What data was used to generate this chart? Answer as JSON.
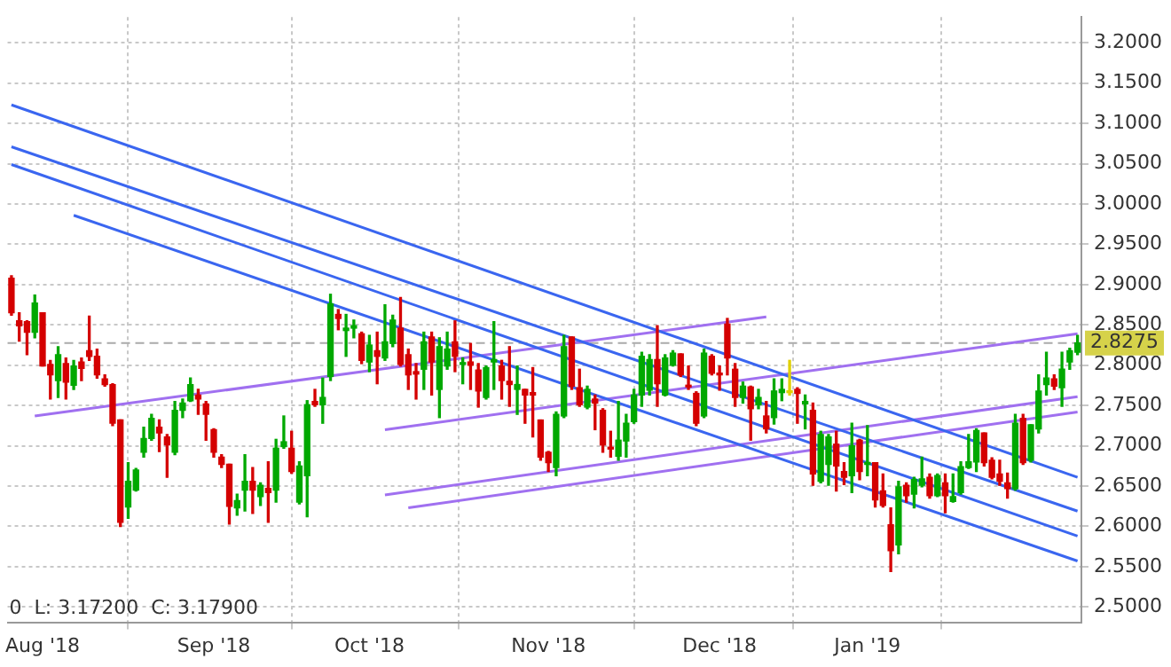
{
  "chart_data": {
    "type": "candlestick",
    "categories": [
      null,
      null,
      null,
      null,
      "Aug '18",
      null,
      null,
      null,
      null,
      null,
      null,
      null,
      null,
      null,
      null,
      null,
      null,
      null,
      null,
      null,
      null,
      null,
      null,
      null,
      null,
      null,
      "Sep '18",
      null,
      null,
      null,
      null,
      null,
      null,
      null,
      null,
      null,
      null,
      null,
      null,
      null,
      null,
      null,
      null,
      null,
      null,
      null,
      "Oct '18",
      null,
      null,
      null,
      null,
      null,
      null,
      null,
      null,
      null,
      null,
      null,
      null,
      null,
      null,
      null,
      null,
      null,
      null,
      null,
      null,
      null,
      null,
      "Nov '18",
      null,
      null,
      null,
      null,
      null,
      null,
      null,
      null,
      null,
      null,
      null,
      null,
      null,
      null,
      null,
      null,
      null,
      null,
      null,
      null,
      null,
      "Dec '18",
      null,
      null,
      null,
      null,
      null,
      null,
      null,
      null,
      null,
      null,
      null,
      null,
      null,
      null,
      null,
      null,
      null,
      null,
      "Jan '19",
      null,
      null,
      null,
      null,
      null,
      null,
      null,
      null,
      null,
      null,
      null,
      null,
      null,
      null,
      null,
      null,
      null,
      null,
      null,
      null,
      null,
      null,
      null,
      null,
      null,
      null,
      null
    ],
    "ohlc": [
      [
        2.908,
        2.911,
        2.862,
        2.865
      ],
      [
        2.855,
        2.865,
        2.83,
        2.849
      ],
      [
        2.854,
        2.855,
        2.813,
        2.841
      ],
      [
        2.841,
        2.887,
        2.834,
        2.877
      ],
      [
        2.865,
        2.865,
        2.799,
        2.799
      ],
      [
        2.801,
        2.806,
        2.758,
        2.788
      ],
      [
        2.781,
        2.823,
        2.76,
        2.813
      ],
      [
        2.802,
        2.809,
        2.758,
        2.779
      ],
      [
        2.775,
        2.806,
        2.77,
        2.799
      ],
      [
        2.804,
        2.809,
        2.781,
        2.796
      ],
      [
        2.818,
        2.861,
        2.806,
        2.811
      ],
      [
        2.811,
        2.82,
        2.784,
        2.788
      ],
      [
        2.783,
        2.788,
        2.774,
        2.776
      ],
      [
        2.776,
        2.777,
        2.725,
        2.728
      ],
      [
        2.732,
        2.732,
        2.6,
        2.605
      ],
      [
        2.624,
        2.679,
        2.61,
        2.656
      ],
      [
        2.645,
        2.672,
        2.644,
        2.67
      ],
      [
        2.692,
        2.723,
        2.686,
        2.709
      ],
      [
        2.709,
        2.739,
        2.707,
        2.734
      ],
      [
        2.723,
        2.732,
        2.693,
        2.716
      ],
      [
        2.711,
        2.714,
        2.661,
        2.701
      ],
      [
        2.692,
        2.755,
        2.689,
        2.744
      ],
      [
        2.744,
        2.758,
        2.735,
        2.753
      ],
      [
        2.756,
        2.784,
        2.755,
        2.776
      ],
      [
        2.763,
        2.77,
        2.739,
        2.758
      ],
      [
        2.752,
        2.755,
        2.707,
        2.739
      ],
      [
        2.72,
        2.721,
        2.686,
        2.692
      ],
      [
        2.686,
        2.689,
        2.673,
        2.677
      ],
      [
        2.677,
        2.677,
        2.603,
        2.625
      ],
      [
        2.623,
        2.64,
        2.614,
        2.632
      ],
      [
        2.645,
        2.689,
        2.619,
        2.656
      ],
      [
        2.656,
        2.673,
        2.616,
        2.645
      ],
      [
        2.637,
        2.654,
        2.626,
        2.651
      ],
      [
        2.647,
        2.68,
        2.605,
        2.642
      ],
      [
        2.645,
        2.708,
        2.63,
        2.697
      ],
      [
        2.699,
        2.737,
        2.697,
        2.705
      ],
      [
        2.697,
        2.718,
        2.666,
        2.668
      ],
      [
        2.63,
        2.68,
        2.628,
        2.675
      ],
      [
        2.663,
        2.756,
        2.612,
        2.751
      ],
      [
        2.755,
        2.77,
        2.749,
        2.751
      ],
      [
        2.751,
        2.784,
        2.728,
        2.76
      ],
      [
        2.786,
        2.888,
        2.781,
        2.876
      ],
      [
        2.863,
        2.869,
        2.844,
        2.858
      ],
      [
        2.843,
        2.863,
        2.811,
        2.846
      ],
      [
        2.846,
        2.856,
        2.834,
        2.849
      ],
      [
        2.839,
        2.841,
        2.802,
        2.806
      ],
      [
        2.804,
        2.837,
        2.792,
        2.825
      ],
      [
        2.818,
        2.841,
        2.777,
        2.811
      ],
      [
        2.809,
        2.875,
        2.806,
        2.829
      ],
      [
        2.827,
        2.862,
        2.823,
        2.856
      ],
      [
        2.846,
        2.884,
        2.799,
        2.801
      ],
      [
        2.813,
        2.82,
        2.77,
        2.788
      ],
      [
        2.792,
        2.802,
        2.758,
        2.789
      ],
      [
        2.795,
        2.841,
        2.77,
        2.829
      ],
      [
        2.835,
        2.841,
        2.763,
        2.804
      ],
      [
        2.77,
        2.834,
        2.735,
        2.823
      ],
      [
        2.799,
        2.841,
        2.795,
        2.82
      ],
      [
        2.829,
        2.855,
        2.792,
        2.811
      ],
      [
        2.801,
        2.809,
        2.777,
        2.802
      ],
      [
        2.804,
        2.827,
        2.77,
        2.8
      ],
      [
        2.794,
        2.802,
        2.748,
        2.768
      ],
      [
        2.76,
        2.799,
        2.758,
        2.797
      ],
      [
        2.804,
        2.854,
        2.77,
        2.807
      ],
      [
        2.799,
        2.806,
        2.758,
        2.781
      ],
      [
        2.78,
        2.823,
        2.749,
        2.776
      ],
      [
        2.77,
        2.799,
        2.739,
        2.776
      ],
      [
        2.77,
        2.77,
        2.728,
        2.763
      ],
      [
        2.766,
        2.797,
        2.711,
        2.763
      ],
      [
        2.732,
        2.732,
        2.682,
        2.686
      ],
      [
        2.692,
        2.693,
        2.668,
        2.679
      ],
      [
        2.673,
        2.742,
        2.663,
        2.739
      ],
      [
        2.737,
        2.837,
        2.735,
        2.823
      ],
      [
        2.835,
        2.835,
        2.77,
        2.774
      ],
      [
        2.772,
        2.795,
        2.749,
        2.751
      ],
      [
        2.748,
        2.774,
        2.746,
        2.77
      ],
      [
        2.758,
        2.763,
        2.72,
        2.753
      ],
      [
        2.744,
        2.746,
        2.692,
        2.701
      ],
      [
        2.698,
        2.718,
        2.686,
        2.696
      ],
      [
        2.687,
        2.755,
        2.682,
        2.707
      ],
      [
        2.706,
        2.739,
        2.686,
        2.728
      ],
      [
        2.73,
        2.77,
        2.728,
        2.763
      ],
      [
        2.763,
        2.816,
        2.749,
        2.811
      ],
      [
        2.769,
        2.813,
        2.763,
        2.807
      ],
      [
        2.807,
        2.849,
        2.749,
        2.777
      ],
      [
        2.763,
        2.813,
        2.762,
        2.809
      ],
      [
        2.8,
        2.818,
        2.799,
        2.815
      ],
      [
        2.814,
        2.814,
        2.786,
        2.788
      ],
      [
        2.775,
        2.799,
        2.77,
        2.773
      ],
      [
        2.765,
        2.767,
        2.725,
        2.728
      ],
      [
        2.737,
        2.82,
        2.735,
        2.815
      ],
      [
        2.811,
        2.813,
        2.788,
        2.79
      ],
      [
        2.789,
        2.799,
        2.769,
        2.788
      ],
      [
        2.851,
        2.858,
        2.788,
        2.809
      ],
      [
        2.795,
        2.802,
        2.749,
        2.76
      ],
      [
        2.76,
        2.779,
        2.753,
        2.774
      ],
      [
        2.773,
        2.774,
        2.707,
        2.746
      ],
      [
        2.751,
        2.77,
        2.746,
        2.76
      ],
      [
        2.737,
        2.755,
        2.716,
        2.721
      ],
      [
        2.735,
        2.783,
        2.727,
        2.768
      ],
      [
        2.766,
        2.783,
        2.756,
        2.77
      ],
      [
        2.766,
        2.806,
        2.763,
        2.767
      ],
      [
        2.77,
        2.772,
        2.728,
        2.765
      ],
      [
        2.752,
        2.763,
        2.721,
        2.755
      ],
      [
        2.744,
        2.753,
        2.651,
        2.665
      ],
      [
        2.656,
        2.718,
        2.654,
        2.714
      ],
      [
        2.677,
        2.714,
        2.651,
        2.711
      ],
      [
        2.702,
        2.718,
        2.644,
        2.675
      ],
      [
        2.668,
        2.679,
        2.652,
        2.661
      ],
      [
        2.663,
        2.728,
        2.642,
        2.7
      ],
      [
        2.707,
        2.708,
        2.658,
        2.668
      ],
      [
        2.677,
        2.725,
        2.663,
        2.679
      ],
      [
        2.679,
        2.679,
        2.624,
        2.633
      ],
      [
        2.644,
        2.665,
        2.624,
        2.626
      ],
      [
        2.602,
        2.623,
        2.544,
        2.57
      ],
      [
        2.577,
        2.656,
        2.566,
        2.649
      ],
      [
        2.651,
        2.654,
        2.63,
        2.638
      ],
      [
        2.64,
        2.661,
        2.623,
        2.658
      ],
      [
        2.651,
        2.686,
        2.649,
        2.659
      ],
      [
        2.661,
        2.665,
        2.635,
        2.638
      ],
      [
        2.638,
        2.665,
        2.637,
        2.663
      ],
      [
        2.654,
        2.665,
        2.617,
        2.638
      ],
      [
        2.631,
        2.665,
        2.63,
        2.637
      ],
      [
        2.642,
        2.68,
        2.64,
        2.674
      ],
      [
        2.673,
        2.714,
        2.672,
        2.68
      ],
      [
        2.68,
        2.721,
        2.668,
        2.719
      ],
      [
        2.716,
        2.716,
        2.675,
        2.679
      ],
      [
        2.682,
        2.685,
        2.659,
        2.661
      ],
      [
        2.665,
        2.682,
        2.651,
        2.656
      ],
      [
        2.654,
        2.666,
        2.635,
        2.647
      ],
      [
        2.647,
        2.739,
        2.645,
        2.728
      ],
      [
        2.734,
        2.739,
        2.677,
        2.679
      ],
      [
        2.682,
        2.726,
        2.68,
        2.726
      ],
      [
        2.721,
        2.788,
        2.716,
        2.768
      ],
      [
        2.776,
        2.816,
        2.763,
        2.784
      ],
      [
        2.783,
        2.788,
        2.77,
        2.774
      ],
      [
        2.772,
        2.816,
        2.749,
        2.795
      ],
      [
        2.804,
        2.821,
        2.795,
        2.818
      ],
      [
        2.816,
        2.837,
        2.813,
        2.8275
      ]
    ],
    "colors": [
      "#d40000",
      "#d40000",
      "#d40000",
      "#00a800",
      "#d40000",
      "#d40000",
      "#00a800",
      "#d40000",
      "#00a800",
      "#d40000",
      "#d40000",
      "#d40000",
      "#d40000",
      "#d40000",
      "#d40000",
      "#00a800",
      "#00a800",
      "#00a800",
      "#00a800",
      "#d40000",
      "#d40000",
      "#00a800",
      "#00a800",
      "#00a800",
      "#d40000",
      "#d40000",
      "#d40000",
      "#d40000",
      "#d40000",
      "#00a800",
      "#00a800",
      "#d40000",
      "#00a800",
      "#d40000",
      "#00a800",
      "#00a800",
      "#d40000",
      "#00a800",
      "#00a800",
      "#d40000",
      "#00a800",
      "#00a800",
      "#d40000",
      "#00a800",
      "#00a800",
      "#d40000",
      "#00a800",
      "#d40000",
      "#00a800",
      "#00a800",
      "#d40000",
      "#d40000",
      "#d40000",
      "#00a800",
      "#d40000",
      "#00a800",
      "#00a800",
      "#d40000",
      "#00a800",
      "#d40000",
      "#d40000",
      "#00a800",
      "#00a800",
      "#d40000",
      "#d40000",
      "#00a800",
      "#d40000",
      "#d40000",
      "#d40000",
      "#d40000",
      "#00a800",
      "#00a800",
      "#d40000",
      "#d40000",
      "#00a800",
      "#d40000",
      "#d40000",
      "#d40000",
      "#00a800",
      "#00a800",
      "#00a800",
      "#00a800",
      "#00a800",
      "#d40000",
      "#00a800",
      "#00a800",
      "#d40000",
      "#d40000",
      "#d40000",
      "#00a800",
      "#d40000",
      "#d40000",
      "#d40000",
      "#d40000",
      "#00a800",
      "#d40000",
      "#00a800",
      "#d40000",
      "#00a800",
      "#00a800",
      "#e0d000",
      "#d40000",
      "#00a800",
      "#d40000",
      "#00a800",
      "#00a800",
      "#d40000",
      "#d40000",
      "#00a800",
      "#d40000",
      "#00a800",
      "#d40000",
      "#d40000",
      "#d40000",
      "#00a800",
      "#d40000",
      "#00a800",
      "#00a800",
      "#d40000",
      "#00a800",
      "#d40000",
      "#00a800",
      "#00a800",
      "#00a800",
      "#00a800",
      "#d40000",
      "#d40000",
      "#d40000",
      "#d40000",
      "#00a800",
      "#d40000",
      "#00a800",
      "#00a800",
      "#00a800",
      "#d40000",
      "#00a800",
      "#00a800",
      "#00a800"
    ],
    "series": [
      {
        "type": "line",
        "color": "#3a66f0",
        "values": [
          3.123,
          null,
          null,
          null,
          null,
          null,
          null,
          null,
          null,
          null,
          null,
          null,
          null,
          null,
          null,
          null,
          null,
          null,
          null,
          null,
          null,
          null,
          null,
          null,
          null,
          null,
          null,
          null,
          null,
          null,
          null,
          null,
          null,
          null,
          null,
          null,
          null,
          null,
          null,
          null,
          null,
          null,
          null,
          null,
          null,
          null,
          null,
          null,
          null,
          null,
          null,
          null,
          null,
          null,
          null,
          null,
          null,
          null,
          null,
          null,
          null,
          null,
          null,
          null,
          null,
          null,
          null,
          null,
          null,
          null,
          null,
          null,
          null,
          null,
          null,
          null,
          null,
          null,
          null,
          null,
          null,
          null,
          null,
          null,
          null,
          null,
          null,
          null,
          null,
          null,
          null,
          null,
          null,
          null,
          null,
          null,
          null,
          null,
          null,
          null,
          null,
          null,
          null,
          null,
          null,
          null,
          null,
          null,
          null,
          null,
          null,
          null,
          null,
          null,
          null,
          null,
          null,
          null,
          null,
          null,
          null,
          null,
          null,
          null,
          null,
          null,
          null,
          null,
          null,
          null,
          null,
          null,
          null,
          null,
          null,
          null,
          null,
          2.661
        ]
      },
      {
        "type": "line",
        "color": "#3a66f0",
        "values": [
          3.071,
          null,
          null,
          null,
          null,
          null,
          null,
          null,
          null,
          null,
          null,
          null,
          null,
          null,
          null,
          null,
          null,
          null,
          null,
          null,
          null,
          null,
          null,
          null,
          null,
          null,
          null,
          null,
          null,
          null,
          null,
          null,
          null,
          null,
          null,
          null,
          null,
          null,
          null,
          null,
          null,
          null,
          null,
          null,
          null,
          null,
          null,
          null,
          null,
          null,
          null,
          null,
          null,
          null,
          null,
          null,
          null,
          null,
          null,
          null,
          null,
          null,
          null,
          null,
          null,
          null,
          null,
          null,
          null,
          null,
          null,
          null,
          null,
          null,
          null,
          null,
          null,
          null,
          null,
          null,
          null,
          null,
          null,
          null,
          null,
          null,
          null,
          null,
          null,
          null,
          null,
          null,
          null,
          null,
          null,
          null,
          null,
          null,
          null,
          null,
          null,
          null,
          null,
          null,
          null,
          null,
          null,
          null,
          null,
          null,
          null,
          null,
          null,
          null,
          null,
          null,
          null,
          null,
          null,
          null,
          null,
          null,
          null,
          null,
          null,
          null,
          null,
          null,
          null,
          null,
          null,
          null,
          null,
          null,
          null,
          null,
          null,
          2.619
        ]
      },
      {
        "type": "line",
        "color": "#3a66f0",
        "values": [
          3.049,
          null,
          null,
          null,
          null,
          null,
          null,
          null,
          null,
          null,
          null,
          null,
          null,
          null,
          null,
          null,
          null,
          null,
          null,
          null,
          null,
          null,
          null,
          null,
          null,
          null,
          null,
          null,
          null,
          null,
          null,
          null,
          null,
          null,
          null,
          null,
          null,
          null,
          null,
          null,
          null,
          null,
          null,
          null,
          null,
          null,
          null,
          null,
          null,
          null,
          null,
          null,
          null,
          null,
          null,
          null,
          null,
          null,
          null,
          null,
          null,
          null,
          null,
          null,
          null,
          null,
          null,
          null,
          null,
          null,
          null,
          null,
          null,
          null,
          null,
          null,
          null,
          null,
          null,
          null,
          null,
          null,
          null,
          null,
          null,
          null,
          null,
          null,
          null,
          null,
          null,
          null,
          null,
          null,
          null,
          null,
          null,
          null,
          null,
          null,
          null,
          null,
          null,
          null,
          null,
          null,
          null,
          null,
          null,
          null,
          null,
          null,
          null,
          null,
          null,
          null,
          null,
          null,
          null,
          null,
          null,
          null,
          null,
          null,
          null,
          null,
          null,
          null,
          null,
          null,
          null,
          null,
          null,
          null,
          null,
          null,
          null,
          2.588
        ]
      },
      {
        "type": "line",
        "color": "#3a66f0",
        "values": [
          null,
          null,
          null,
          null,
          null,
          null,
          null,
          null,
          2.986,
          null,
          null,
          null,
          null,
          null,
          null,
          null,
          null,
          null,
          null,
          null,
          null,
          null,
          null,
          null,
          null,
          null,
          null,
          null,
          null,
          null,
          null,
          null,
          null,
          null,
          null,
          null,
          null,
          null,
          null,
          null,
          null,
          null,
          null,
          null,
          null,
          null,
          null,
          null,
          null,
          null,
          null,
          null,
          null,
          null,
          null,
          null,
          null,
          null,
          null,
          null,
          null,
          null,
          null,
          null,
          null,
          null,
          null,
          null,
          null,
          null,
          null,
          null,
          null,
          null,
          null,
          null,
          null,
          null,
          null,
          null,
          null,
          null,
          null,
          null,
          null,
          null,
          null,
          null,
          null,
          null,
          null,
          null,
          null,
          null,
          null,
          null,
          null,
          null,
          null,
          null,
          null,
          null,
          null,
          null,
          null,
          null,
          null,
          null,
          null,
          null,
          null,
          null,
          null,
          null,
          null,
          null,
          null,
          null,
          null,
          null,
          null,
          null,
          null,
          null,
          null,
          null,
          null,
          null,
          null,
          null,
          null,
          null,
          null,
          null,
          null,
          null,
          null,
          2.557
        ]
      },
      {
        "type": "line",
        "color": "#a070f0",
        "values": [
          null,
          null,
          null,
          2.737,
          null,
          null,
          null,
          null,
          null,
          null,
          null,
          null,
          null,
          null,
          null,
          null,
          null,
          null,
          null,
          null,
          null,
          null,
          null,
          null,
          null,
          null,
          null,
          null,
          null,
          null,
          null,
          null,
          null,
          null,
          null,
          null,
          null,
          null,
          null,
          null,
          null,
          null,
          null,
          null,
          null,
          null,
          null,
          null,
          null,
          null,
          null,
          null,
          null,
          null,
          null,
          null,
          null,
          null,
          null,
          null,
          null,
          null,
          null,
          null,
          null,
          null,
          null,
          null,
          null,
          null,
          null,
          null,
          null,
          null,
          null,
          null,
          null,
          null,
          null,
          null,
          null,
          null,
          null,
          null,
          null,
          null,
          null,
          null,
          null,
          null,
          null,
          null,
          null,
          null,
          null,
          null,
          null,
          2.86,
          null,
          null,
          null,
          null,
          null,
          null,
          null,
          null,
          null,
          null,
          null,
          null,
          null,
          null,
          null,
          null,
          null,
          null,
          null,
          null,
          null,
          null,
          null,
          null,
          null,
          null,
          null,
          null,
          null,
          null,
          null,
          null,
          null,
          null,
          null,
          null,
          null,
          null,
          null,
          null
        ]
      },
      {
        "type": "line",
        "color": "#a070f0",
        "values": [
          null,
          null,
          null,
          null,
          null,
          null,
          null,
          null,
          null,
          null,
          null,
          null,
          null,
          null,
          null,
          null,
          null,
          null,
          null,
          null,
          null,
          null,
          null,
          null,
          null,
          null,
          null,
          null,
          null,
          null,
          null,
          null,
          null,
          null,
          null,
          null,
          null,
          null,
          null,
          null,
          null,
          null,
          null,
          null,
          null,
          null,
          null,
          null,
          2.72,
          null,
          null,
          null,
          null,
          null,
          null,
          null,
          null,
          null,
          null,
          null,
          null,
          null,
          null,
          null,
          null,
          null,
          null,
          null,
          null,
          null,
          null,
          null,
          null,
          null,
          null,
          null,
          null,
          null,
          null,
          null,
          null,
          null,
          null,
          null,
          null,
          null,
          null,
          null,
          null,
          null,
          null,
          null,
          null,
          null,
          null,
          null,
          null,
          null,
          null,
          null,
          null,
          null,
          null,
          null,
          null,
          null,
          null,
          null,
          null,
          null,
          null,
          null,
          null,
          null,
          null,
          null,
          null,
          null,
          null,
          null,
          null,
          null,
          null,
          null,
          null,
          null,
          null,
          null,
          null,
          null,
          null,
          null,
          null,
          null,
          null,
          null,
          null,
          2.839
        ]
      },
      {
        "type": "line",
        "color": "#a070f0",
        "values": [
          null,
          null,
          null,
          null,
          null,
          null,
          null,
          null,
          null,
          null,
          null,
          null,
          null,
          null,
          null,
          null,
          null,
          null,
          null,
          null,
          null,
          null,
          null,
          null,
          null,
          null,
          null,
          null,
          null,
          null,
          null,
          null,
          null,
          null,
          null,
          null,
          null,
          null,
          null,
          null,
          null,
          null,
          null,
          null,
          null,
          null,
          null,
          null,
          2.639,
          null,
          null,
          null,
          null,
          null,
          null,
          null,
          null,
          null,
          null,
          null,
          null,
          null,
          null,
          null,
          null,
          null,
          null,
          null,
          null,
          null,
          null,
          null,
          null,
          null,
          null,
          null,
          null,
          null,
          null,
          null,
          null,
          null,
          null,
          null,
          null,
          null,
          null,
          null,
          null,
          null,
          null,
          null,
          null,
          null,
          null,
          null,
          null,
          null,
          null,
          null,
          null,
          null,
          null,
          null,
          null,
          null,
          null,
          null,
          null,
          null,
          null,
          null,
          null,
          null,
          null,
          null,
          null,
          null,
          null,
          null,
          null,
          null,
          null,
          null,
          null,
          null,
          null,
          null,
          null,
          null,
          null,
          null,
          null,
          null,
          null,
          null,
          null,
          2.761
        ]
      },
      {
        "type": "line",
        "color": "#a070f0",
        "values": [
          null,
          null,
          null,
          null,
          null,
          null,
          null,
          null,
          null,
          null,
          null,
          null,
          null,
          null,
          null,
          null,
          null,
          null,
          null,
          null,
          null,
          null,
          null,
          null,
          null,
          null,
          null,
          null,
          null,
          null,
          null,
          null,
          null,
          null,
          null,
          null,
          null,
          null,
          null,
          null,
          null,
          null,
          null,
          null,
          null,
          null,
          null,
          null,
          null,
          null,
          null,
          2.623,
          null,
          null,
          null,
          null,
          null,
          null,
          null,
          null,
          null,
          null,
          null,
          null,
          null,
          null,
          null,
          null,
          null,
          null,
          null,
          null,
          null,
          null,
          null,
          null,
          null,
          null,
          null,
          null,
          null,
          null,
          null,
          null,
          null,
          null,
          null,
          null,
          null,
          null,
          null,
          null,
          null,
          null,
          null,
          null,
          null,
          null,
          null,
          null,
          null,
          null,
          null,
          null,
          null,
          null,
          null,
          null,
          null,
          null,
          null,
          null,
          null,
          null,
          null,
          null,
          null,
          null,
          null,
          null,
          null,
          null,
          null,
          null,
          null,
          null,
          null,
          null,
          null,
          null,
          null,
          null,
          null,
          null,
          null,
          null,
          null,
          2.742
        ]
      }
    ],
    "ylim": [
      2.481,
      3.232
    ],
    "yticks": [
      {
        "value": 2.5,
        "label": "2.5000"
      },
      {
        "value": 2.55,
        "label": "2.5500"
      },
      {
        "value": 2.6,
        "label": "2.6000"
      },
      {
        "value": 2.65,
        "label": "2.6500"
      },
      {
        "value": 2.7,
        "label": "2.7000"
      },
      {
        "value": 2.75,
        "label": "2.7500"
      },
      {
        "value": 2.8,
        "label": "2.8000"
      },
      {
        "value": 2.85,
        "label": "2.8500"
      },
      {
        "value": 2.9,
        "label": "2.9000"
      },
      {
        "value": 2.95,
        "label": "2.9500"
      },
      {
        "value": 3.0,
        "label": "3.0000"
      },
      {
        "value": 3.05,
        "label": "3.0500"
      },
      {
        "value": 3.1,
        "label": "3.1000"
      },
      {
        "value": 3.15,
        "label": "3.1500"
      },
      {
        "value": 3.2,
        "label": "3.2000"
      }
    ],
    "ref_lines": [
      {
        "axis": "y",
        "value": 2.8275,
        "label": "2.8275",
        "color": "#aaaaaa",
        "line_style": "dashed"
      }
    ],
    "annotations": [
      "0  L: 3.17200  C: 3.17900"
    ],
    "grid": true,
    "line_style": "solid"
  }
}
